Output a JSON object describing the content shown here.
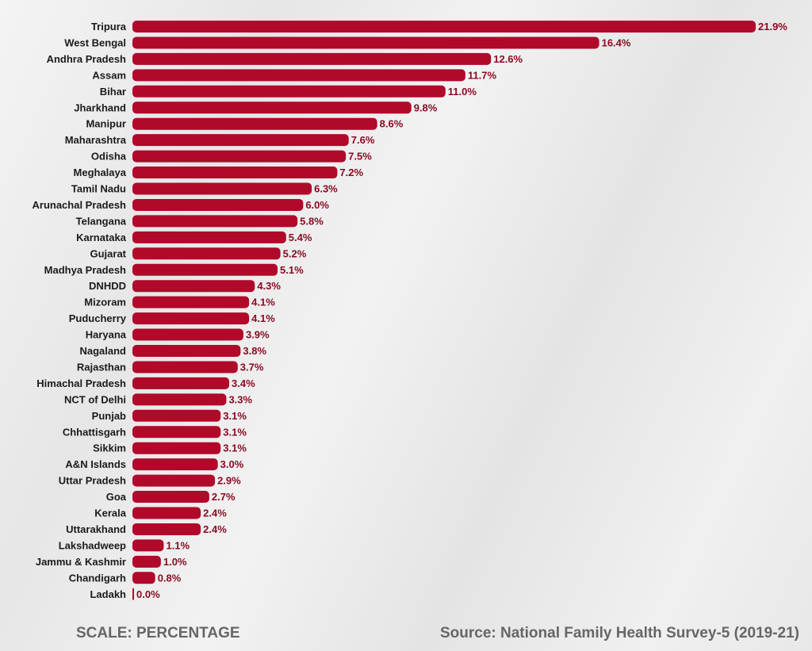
{
  "chart_data": {
    "type": "bar",
    "orientation": "horizontal",
    "categories": [
      "Tripura",
      "West Bengal",
      "Andhra Pradesh",
      "Assam",
      "Bihar",
      "Jharkhand",
      "Manipur",
      "Maharashtra",
      "Odisha",
      "Meghalaya",
      "Tamil Nadu",
      "Arunachal Pradesh",
      "Telangana",
      "Karnataka",
      "Gujarat",
      "Madhya Pradesh",
      "DNHDD",
      "Mizoram",
      "Puducherry",
      "Haryana",
      "Nagaland",
      "Rajasthan",
      "Himachal Pradesh",
      "NCT of Delhi",
      "Punjab",
      "Chhattisgarh",
      "Sikkim",
      "A&N Islands",
      "Uttar Pradesh",
      "Goa",
      "Kerala",
      "Uttarakhand",
      "Lakshadweep",
      "Jammu & Kashmir",
      "Chandigarh",
      "Ladakh"
    ],
    "values": [
      21.9,
      16.4,
      12.6,
      11.7,
      11.0,
      9.8,
      8.6,
      7.6,
      7.5,
      7.2,
      6.3,
      6.0,
      5.8,
      5.4,
      5.2,
      5.1,
      4.3,
      4.1,
      4.1,
      3.9,
      3.8,
      3.7,
      3.4,
      3.3,
      3.1,
      3.1,
      3.1,
      3.0,
      2.9,
      2.7,
      2.4,
      2.4,
      1.1,
      1.0,
      0.8,
      0.0
    ],
    "value_labels": [
      "21.9%",
      "16.4%",
      "12.6%",
      "11.7%",
      "11.0%",
      "9.8%",
      "8.6%",
      "7.6%",
      "7.5%",
      "7.2%",
      "6.3%",
      "6.0%",
      "5.8%",
      "5.4%",
      "5.2%",
      "5.1%",
      "4.3%",
      "4.1%",
      "4.1%",
      "3.9%",
      "3.8%",
      "3.7%",
      "3.4%",
      "3.3%",
      "3.1%",
      "3.1%",
      "3.1%",
      "3.0%",
      "2.9%",
      "2.7%",
      "2.4%",
      "2.4%",
      "1.1%",
      "1.0%",
      "0.8%",
      "0.0%"
    ],
    "bar_color": "#b0092a",
    "value_label_color": "#8a0a22",
    "grid": false,
    "xlim": [
      0,
      21.9
    ]
  },
  "footer": {
    "scale": "SCALE: PERCENTAGE",
    "source": "Source: National Family Health Survey-5 (2019-21)"
  }
}
